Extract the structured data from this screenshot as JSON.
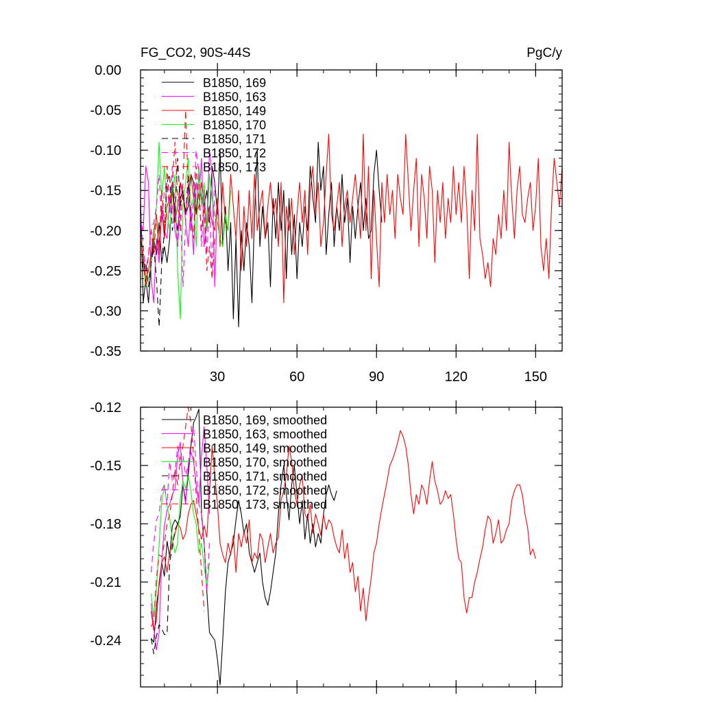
{
  "title_left": "FG_CO2, 90S-44S",
  "title_right": "PgC/y",
  "chart_data": [
    {
      "type": "line",
      "name": "raw",
      "title": "FG_CO2, 90S-44S",
      "units": "PgC/y",
      "xlim": [
        1,
        160
      ],
      "ylim": [
        -0.35,
        0.0
      ],
      "xticks": [
        30,
        60,
        90,
        120,
        150
      ],
      "xtick_labels": [
        "30",
        "60",
        "90",
        "120",
        "150"
      ],
      "yticks": [
        0.0,
        -0.05,
        -0.1,
        -0.15,
        -0.2,
        -0.25,
        -0.3,
        -0.35
      ],
      "ytick_labels": [
        "0.00",
        "-0.05",
        "-0.10",
        "-0.15",
        "-0.20",
        "-0.25",
        "-0.30",
        "-0.35"
      ],
      "legend_position": "top-left",
      "series": [
        {
          "name": "B1850, 169",
          "color": "#000000",
          "dash": "solid",
          "start": 1,
          "values": [
            -0.16,
            -0.29,
            -0.26,
            -0.29,
            -0.24,
            -0.21,
            -0.23,
            -0.19,
            -0.24,
            -0.22,
            -0.24,
            -0.21,
            -0.14,
            -0.18,
            -0.2,
            -0.16,
            -0.15,
            -0.18,
            -0.17,
            -0.13,
            -0.14,
            -0.18,
            -0.13,
            -0.16,
            -0.17,
            -0.15,
            -0.19,
            -0.12,
            -0.14,
            -0.18,
            -0.1,
            -0.22,
            -0.17,
            -0.25,
            -0.19,
            -0.31,
            -0.21,
            -0.32,
            -0.2,
            -0.25,
            -0.19,
            -0.22,
            -0.29,
            -0.18,
            -0.1,
            -0.22,
            -0.17,
            -0.21,
            -0.19,
            -0.27,
            -0.16,
            -0.21,
            -0.14,
            -0.2,
            -0.15,
            -0.26,
            -0.16,
            -0.23,
            -0.18,
            -0.26,
            -0.19,
            -0.22,
            -0.17,
            -0.2,
            -0.12,
            -0.16,
            -0.19,
            -0.09,
            -0.15,
            -0.12,
            -0.23,
            -0.18,
            -0.14,
            -0.22,
            -0.17,
            -0.2,
            -0.13,
            -0.19,
            -0.16,
            -0.24,
            -0.17,
            -0.21,
            -0.17,
            -0.14,
            -0.2,
            -0.16,
            -0.21,
            -0.2,
            -0.13,
            -0.1,
            -0.15,
            -0.19
          ]
        },
        {
          "name": "B1850, 163",
          "color": "#ff00ff",
          "dash": "solid",
          "start": 1,
          "values": [
            -0.19,
            -0.2,
            -0.12,
            -0.14,
            -0.26,
            -0.29,
            -0.21,
            -0.24,
            -0.17,
            -0.2,
            -0.21,
            -0.16,
            -0.17,
            -0.2,
            -0.22,
            -0.14,
            -0.15,
            -0.19,
            -0.22,
            -0.17,
            -0.23,
            -0.14,
            -0.16,
            -0.11,
            -0.22,
            -0.19,
            -0.1,
            -0.13,
            -0.27,
            -0.16
          ]
        },
        {
          "name": "B1850, 149",
          "color": "#ff0000",
          "dash": "solid",
          "start": 1,
          "values": [
            -0.2,
            -0.23,
            -0.26,
            -0.25,
            -0.23,
            -0.2,
            -0.18,
            -0.23,
            -0.17,
            -0.21,
            -0.17,
            -0.16,
            -0.15,
            -0.19,
            -0.17,
            -0.14,
            -0.16,
            -0.18,
            -0.15,
            -0.13,
            -0.16,
            -0.18,
            -0.17,
            -0.14,
            -0.17,
            -0.2,
            -0.17,
            -0.19,
            -0.2,
            -0.16,
            -0.22,
            -0.14,
            -0.19,
            -0.2,
            -0.13,
            -0.17,
            -0.21,
            -0.15,
            -0.25,
            -0.17,
            -0.22,
            -0.15,
            -0.21,
            -0.13,
            -0.2,
            -0.17,
            -0.15,
            -0.21,
            -0.17,
            -0.14,
            -0.18,
            -0.16,
            -0.22,
            -0.14,
            -0.29,
            -0.17,
            -0.2,
            -0.16,
            -0.23,
            -0.18,
            -0.14,
            -0.19,
            -0.15,
            -0.23,
            -0.15,
            -0.12,
            -0.18,
            -0.14,
            -0.22,
            -0.19,
            -0.13,
            -0.08,
            -0.18,
            -0.2,
            -0.17,
            -0.14,
            -0.22,
            -0.17,
            -0.15,
            -0.19,
            -0.16,
            -0.13,
            -0.17,
            -0.21,
            -0.08,
            -0.2,
            -0.12,
            -0.26,
            -0.15,
            -0.21,
            -0.27,
            -0.14,
            -0.19,
            -0.13,
            -0.18,
            -0.15,
            -0.21,
            -0.13,
            -0.16,
            -0.18,
            -0.08,
            -0.14,
            -0.2,
            -0.15,
            -0.11,
            -0.22,
            -0.13,
            -0.16,
            -0.21,
            -0.12,
            -0.15,
            -0.24,
            -0.15,
            -0.19,
            -0.14,
            -0.21,
            -0.16,
            -0.19,
            -0.12,
            -0.18,
            -0.14,
            -0.19,
            -0.12,
            -0.17,
            -0.26,
            -0.15,
            -0.2,
            -0.08,
            -0.21,
            -0.23,
            -0.26,
            -0.24,
            -0.27,
            -0.21,
            -0.23,
            -0.18,
            -0.21,
            -0.15,
            -0.2,
            -0.09,
            -0.16,
            -0.21,
            -0.15,
            -0.12,
            -0.18,
            -0.19,
            -0.16,
            -0.14,
            -0.2,
            -0.17,
            -0.11,
            -0.22,
            -0.25,
            -0.21,
            -0.26,
            -0.17,
            -0.11,
            -0.14,
            -0.17,
            -0.12
          ]
        },
        {
          "name": "B1850, 170",
          "color": "#00ff00",
          "dash": "solid",
          "start": 1,
          "values": [
            -0.2,
            -0.24,
            -0.27,
            -0.26,
            -0.24,
            -0.22,
            -0.17,
            -0.09,
            -0.16,
            -0.12,
            -0.18,
            -0.2,
            -0.15,
            -0.13,
            -0.25,
            -0.31,
            -0.17,
            -0.14,
            -0.11,
            -0.17,
            -0.16,
            -0.22,
            -0.12,
            -0.17,
            -0.14,
            -0.2,
            -0.13,
            -0.16,
            -0.18,
            -0.19,
            -0.21,
            -0.22,
            -0.18,
            -0.2,
            -0.15
          ]
        },
        {
          "name": "B1850, 171",
          "color": "#000000",
          "dash": "dash",
          "start": 1,
          "values": [
            -0.2,
            -0.25,
            -0.24,
            -0.27,
            -0.24,
            -0.22,
            -0.26,
            -0.32,
            -0.24,
            -0.2,
            -0.14,
            -0.13,
            -0.2,
            -0.18,
            -0.11,
            -0.17,
            -0.15,
            -0.18,
            -0.13,
            -0.2
          ]
        },
        {
          "name": "B1850, 172",
          "color": "#ff00ff",
          "dash": "dash",
          "start": 1,
          "values": [
            -0.18,
            -0.22,
            -0.25,
            -0.23,
            -0.2,
            -0.19,
            -0.17,
            -0.13,
            -0.19,
            -0.15,
            -0.14,
            -0.18,
            -0.12,
            -0.17,
            -0.22,
            -0.17,
            -0.27,
            -0.19,
            -0.14,
            -0.2,
            -0.16,
            -0.1,
            -0.13,
            -0.22,
            -0.15,
            -0.23,
            -0.17,
            -0.25,
            -0.14
          ]
        },
        {
          "name": "B1850, 173",
          "color": "#ff0000",
          "dash": "dash",
          "start": 1,
          "values": [
            -0.21,
            -0.24,
            -0.27,
            -0.23,
            -0.2,
            -0.23,
            -0.18,
            -0.22,
            -0.15,
            -0.2,
            -0.12,
            -0.17,
            -0.14,
            -0.09,
            -0.16,
            -0.2,
            -0.14,
            -0.05,
            -0.15,
            -0.18,
            -0.21,
            -0.12,
            -0.16,
            -0.2,
            -0.17,
            -0.25,
            -0.22,
            -0.26,
            -0.21
          ]
        }
      ]
    },
    {
      "type": "line",
      "name": "smoothed",
      "xlim": [
        1,
        160
      ],
      "ylim": [
        -0.264,
        -0.12
      ],
      "xticks": [
        30,
        60,
        90,
        120,
        150
      ],
      "xtick_labels": [
        "",
        "",
        "",
        "",
        ""
      ],
      "yticks": [
        -0.12,
        -0.15,
        -0.18,
        -0.21,
        -0.24
      ],
      "ytick_labels": [
        "-0.12",
        "-0.15",
        "-0.18",
        "-0.21",
        "-0.24"
      ],
      "legend_position": "top-left",
      "series": [
        {
          "name": "B1850, 169, smoothed",
          "color": "#000000",
          "dash": "solid",
          "start": 5,
          "values": [
            -0.239,
            -0.241,
            -0.222,
            -0.212,
            -0.2,
            -0.207,
            -0.189,
            -0.197,
            -0.181,
            -0.178,
            -0.18,
            -0.176,
            -0.16,
            -0.168,
            -0.155,
            -0.14,
            -0.128,
            -0.125,
            -0.121,
            -0.175,
            -0.19,
            -0.215,
            -0.236,
            -0.238,
            -0.24,
            -0.25,
            -0.263,
            -0.24,
            -0.215,
            -0.2,
            -0.195,
            -0.19,
            -0.178,
            -0.168,
            -0.175,
            -0.185,
            -0.18,
            -0.195,
            -0.2,
            -0.205,
            -0.2,
            -0.195,
            -0.21,
            -0.218,
            -0.222,
            -0.215,
            -0.205,
            -0.195,
            -0.175,
            -0.16,
            -0.15,
            -0.165,
            -0.178,
            -0.16,
            -0.15,
            -0.165,
            -0.18,
            -0.168,
            -0.188,
            -0.175,
            -0.19,
            -0.18,
            -0.192,
            -0.185,
            -0.19,
            -0.175,
            -0.165,
            -0.16,
            -0.165,
            -0.168,
            -0.163
          ]
        },
        {
          "name": "B1850, 163, smoothed",
          "color": "#ff00ff",
          "dash": "solid",
          "start": 5,
          "values": [
            -0.221,
            -0.233,
            -0.245,
            -0.236,
            -0.2,
            -0.181,
            -0.173,
            -0.17,
            -0.165,
            -0.162,
            -0.145,
            -0.138,
            -0.16,
            -0.17,
            -0.15,
            -0.143,
            -0.148,
            -0.16,
            -0.17,
            -0.145,
            -0.13,
            -0.15,
            -0.175
          ]
        },
        {
          "name": "B1850, 149, smoothed",
          "color": "#ff0000",
          "dash": "solid",
          "start": 5,
          "values": [
            -0.225,
            -0.235,
            -0.23,
            -0.21,
            -0.2,
            -0.197,
            -0.205,
            -0.195,
            -0.19,
            -0.185,
            -0.18,
            -0.182,
            -0.188,
            -0.185,
            -0.175,
            -0.17,
            -0.168,
            -0.175,
            -0.183,
            -0.188,
            -0.181,
            -0.187,
            -0.164,
            -0.14,
            -0.155,
            -0.17,
            -0.19,
            -0.196,
            -0.2,
            -0.19,
            -0.196,
            -0.186,
            -0.205,
            -0.185,
            -0.192,
            -0.184,
            -0.19,
            -0.178,
            -0.2,
            -0.195,
            -0.198,
            -0.185,
            -0.188,
            -0.2,
            -0.192,
            -0.185,
            -0.195,
            -0.19,
            -0.187,
            -0.168,
            -0.163,
            -0.155,
            -0.14,
            -0.148,
            -0.163,
            -0.17,
            -0.16,
            -0.155,
            -0.175,
            -0.178,
            -0.17,
            -0.185,
            -0.175,
            -0.18,
            -0.186,
            -0.175,
            -0.183,
            -0.178,
            -0.18,
            -0.187,
            -0.192,
            -0.195,
            -0.183,
            -0.198,
            -0.19,
            -0.205,
            -0.2,
            -0.215,
            -0.207,
            -0.225,
            -0.213,
            -0.23,
            -0.218,
            -0.208,
            -0.195,
            -0.19,
            -0.18,
            -0.172,
            -0.165,
            -0.158,
            -0.15,
            -0.147,
            -0.143,
            -0.138,
            -0.132,
            -0.135,
            -0.14,
            -0.15,
            -0.165,
            -0.175,
            -0.165,
            -0.17,
            -0.16,
            -0.163,
            -0.17,
            -0.158,
            -0.148,
            -0.158,
            -0.163,
            -0.17,
            -0.168,
            -0.163,
            -0.167,
            -0.165,
            -0.175,
            -0.188,
            -0.198,
            -0.2,
            -0.218,
            -0.226,
            -0.218,
            -0.218,
            -0.21,
            -0.205,
            -0.198,
            -0.192,
            -0.183,
            -0.176,
            -0.178,
            -0.19,
            -0.185,
            -0.178,
            -0.19,
            -0.188,
            -0.183,
            -0.18,
            -0.168,
            -0.163,
            -0.16,
            -0.16,
            -0.165,
            -0.175,
            -0.182,
            -0.196,
            -0.193,
            -0.198
          ]
        },
        {
          "name": "B1850, 170, smoothed",
          "color": "#00ff00",
          "dash": "solid",
          "start": 5,
          "values": [
            -0.216,
            -0.228,
            -0.214,
            -0.191,
            -0.169,
            -0.16,
            -0.171,
            -0.177,
            -0.188,
            -0.195,
            -0.19,
            -0.167,
            -0.158,
            -0.162,
            -0.155,
            -0.163,
            -0.175,
            -0.18,
            -0.195,
            -0.19,
            -0.202,
            -0.212,
            -0.2
          ]
        },
        {
          "name": "B1850, 171, smoothed",
          "color": "#000000",
          "dash": "dash",
          "start": 5,
          "values": [
            -0.239,
            -0.247,
            -0.238,
            -0.232,
            -0.234,
            -0.237,
            -0.237,
            -0.2,
            -0.192,
            -0.183,
            -0.18,
            -0.176
          ]
        },
        {
          "name": "B1850, 172, smoothed",
          "color": "#ff00ff",
          "dash": "dash",
          "start": 5,
          "values": [
            -0.205,
            -0.19,
            -0.178,
            -0.175,
            -0.163,
            -0.16,
            -0.17,
            -0.148,
            -0.158,
            -0.153,
            -0.14,
            -0.15,
            -0.145,
            -0.155,
            -0.15,
            -0.138,
            -0.13,
            -0.15,
            -0.17,
            -0.175,
            -0.19,
            -0.215,
            -0.19
          ]
        },
        {
          "name": "B1850, 173, smoothed",
          "color": "#ff0000",
          "dash": "dash",
          "start": 5,
          "values": [
            -0.233,
            -0.23,
            -0.208,
            -0.196,
            -0.197,
            -0.19,
            -0.18,
            -0.175,
            -0.165,
            -0.152,
            -0.16,
            -0.147,
            -0.14,
            -0.13,
            -0.12,
            -0.128,
            -0.145,
            -0.165,
            -0.185,
            -0.205,
            -0.225
          ]
        }
      ]
    }
  ]
}
